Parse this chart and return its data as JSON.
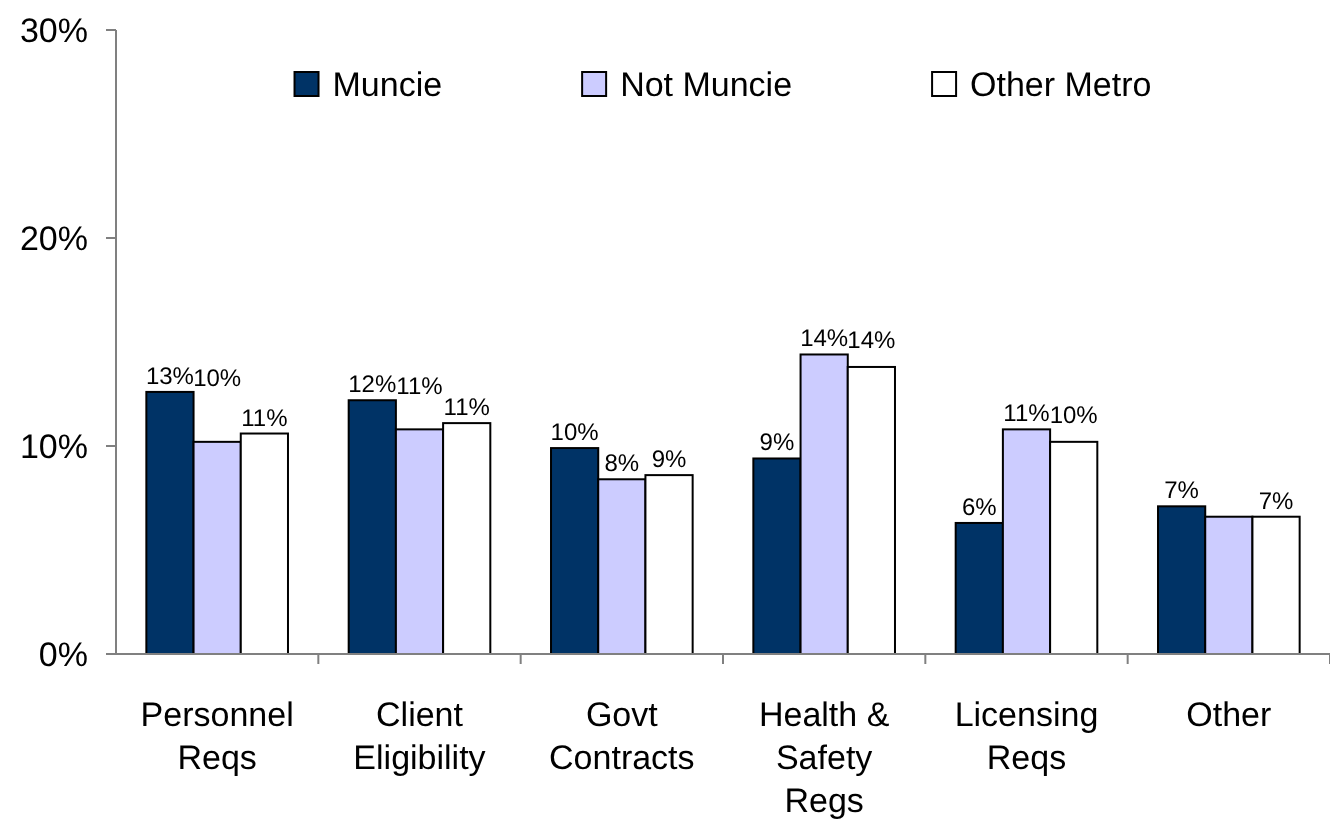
{
  "chart_data": {
    "type": "bar",
    "categories": [
      "Personnel Reqs",
      "Client Eligibility",
      "Govt Contracts",
      "Health & Safety Regs",
      "Licensing Reqs",
      "Other"
    ],
    "series": [
      {
        "name": "Muncie",
        "color": "#003366",
        "values": [
          12.6,
          12.2,
          9.9,
          9.4,
          6.3,
          7.1
        ],
        "value_labels": [
          "13%",
          "12%",
          "10%",
          "9%",
          "6%",
          "7%"
        ]
      },
      {
        "name": "Not Muncie",
        "color": "#ccccff",
        "values": [
          10.2,
          10.8,
          8.4,
          14.4,
          10.8,
          6.6
        ],
        "value_labels": [
          "10%",
          "11%",
          "8%",
          "14%",
          "11%",
          null
        ]
      },
      {
        "name": "Other Metro",
        "color": "#ffffff",
        "values": [
          10.6,
          11.1,
          8.6,
          13.8,
          10.2,
          6.6
        ],
        "value_labels": [
          "11%",
          "11%",
          "9%",
          "14%",
          "10%",
          "7%"
        ]
      }
    ],
    "ylim": [
      0,
      30
    ],
    "yticks": [
      {
        "value": 0,
        "label": "0%"
      },
      {
        "value": 10,
        "label": "10%"
      },
      {
        "value": 20,
        "label": "20%"
      },
      {
        "value": 30,
        "label": "30%"
      }
    ],
    "legend": "top"
  }
}
